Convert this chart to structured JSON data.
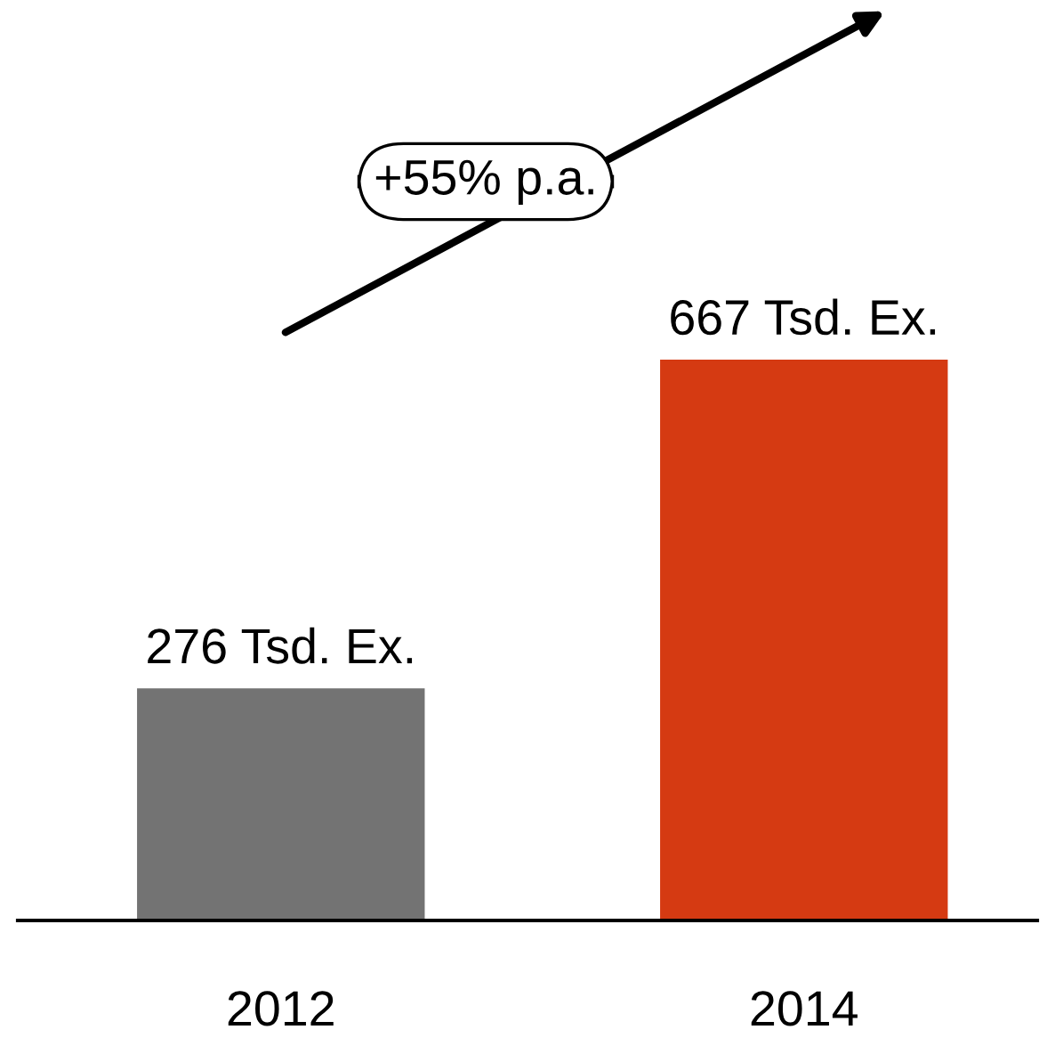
{
  "chart_data": {
    "type": "bar",
    "categories": [
      "2012",
      "2014"
    ],
    "values": [
      276,
      667
    ],
    "colors": [
      "#737373",
      "#d53a12"
    ],
    "value_labels": [
      "276 Tsd. Ex.",
      "667 Tsd. Ex."
    ],
    "annotations": [
      "+55% p.a."
    ],
    "grid": false,
    "legend": false
  }
}
